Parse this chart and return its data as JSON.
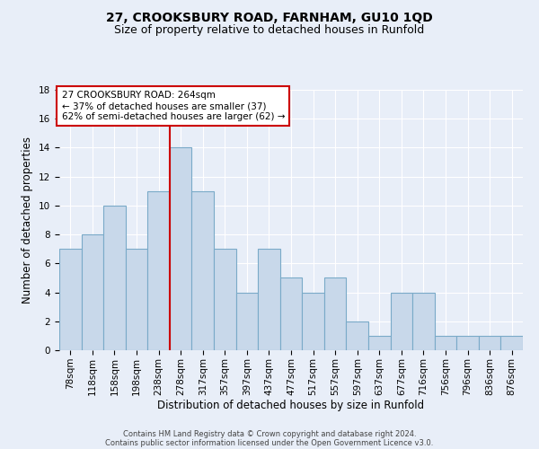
{
  "title": "27, CROOKSBURY ROAD, FARNHAM, GU10 1QD",
  "subtitle": "Size of property relative to detached houses in Runfold",
  "xlabel": "Distribution of detached houses by size in Runfold",
  "ylabel": "Number of detached properties",
  "bin_labels": [
    "78sqm",
    "118sqm",
    "158sqm",
    "198sqm",
    "238sqm",
    "278sqm",
    "317sqm",
    "357sqm",
    "397sqm",
    "437sqm",
    "477sqm",
    "517sqm",
    "557sqm",
    "597sqm",
    "637sqm",
    "677sqm",
    "716sqm",
    "756sqm",
    "796sqm",
    "836sqm",
    "876sqm"
  ],
  "counts": [
    7,
    8,
    10,
    7,
    11,
    14,
    11,
    7,
    4,
    7,
    5,
    4,
    5,
    2,
    1,
    4,
    4,
    1,
    1,
    1,
    1
  ],
  "bar_color": "#c8d8ea",
  "bar_edge_color": "#7aaac8",
  "property_bin_index": 5,
  "red_line_color": "#cc0000",
  "annotation_text": "27 CROOKSBURY ROAD: 264sqm\n← 37% of detached houses are smaller (37)\n62% of semi-detached houses are larger (62) →",
  "annotation_box_color": "white",
  "annotation_box_edge_color": "#cc0000",
  "ylim": [
    0,
    18
  ],
  "yticks": [
    0,
    2,
    4,
    6,
    8,
    10,
    12,
    14,
    16,
    18
  ],
  "background_color": "#e8eef8",
  "plot_background_color": "#e8eef8",
  "footer_line1": "Contains HM Land Registry data © Crown copyright and database right 2024.",
  "footer_line2": "Contains public sector information licensed under the Open Government Licence v3.0.",
  "title_fontsize": 10,
  "subtitle_fontsize": 9,
  "axis_label_fontsize": 8.5,
  "tick_fontsize": 7.5,
  "annotation_fontsize": 7.5,
  "footer_fontsize": 6
}
